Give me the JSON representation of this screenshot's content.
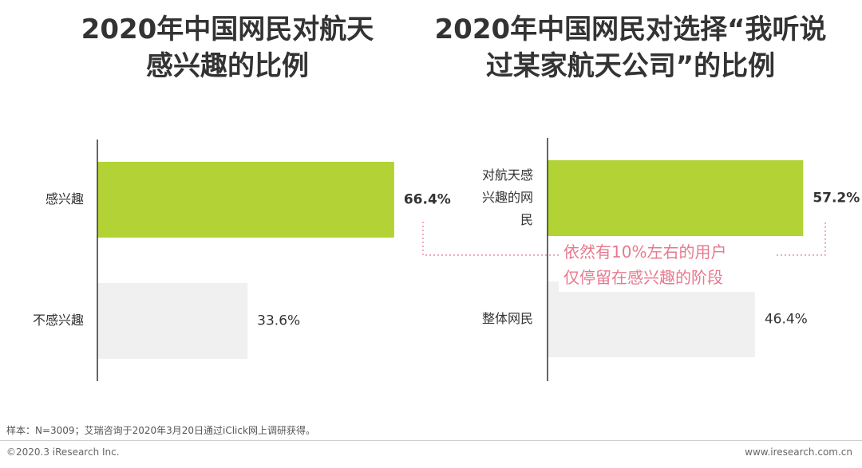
{
  "titles": {
    "left": [
      "2020年中国网民对航天",
      "感兴趣的比例"
    ],
    "right": [
      "2020年中国网民对选择“我听说",
      "过某家航天公司”的比例"
    ]
  },
  "colors": {
    "highlight": "#b2d235",
    "neutral": "#f0f0f0",
    "callout": "#e8798f",
    "axis": "#333333"
  },
  "chart_data": [
    {
      "type": "bar",
      "orientation": "horizontal",
      "title": "2020年中国网民对航天感兴趣的比例",
      "categories": [
        "感兴趣",
        "不感兴趣"
      ],
      "values": [
        66.4,
        33.6
      ],
      "value_labels": [
        "66.4%",
        "33.6%"
      ],
      "xlim": [
        0,
        100
      ],
      "grid": false
    },
    {
      "type": "bar",
      "orientation": "horizontal",
      "title": "2020年中国网民对选择“我听说过某家航天公司”的比例",
      "categories": [
        "对航天感兴趣的网民",
        "整体网民"
      ],
      "category_lines": [
        [
          "对航天感",
          "兴趣的网",
          "民"
        ],
        [
          "整体网民"
        ]
      ],
      "values": [
        57.2,
        46.4
      ],
      "value_labels": [
        "57.2%",
        "46.4%"
      ],
      "xlim": [
        0,
        100
      ],
      "grid": false,
      "annotation": [
        "依然有10%左右的用户",
        "仅停留在感兴趣的阶段"
      ]
    }
  ],
  "footer": {
    "source": "样本：N=3009；艾瑞咨询于2020年3月20日通过iClick网上调研获得。",
    "copyright": "©2020.3 iResearch Inc.",
    "website": "www.iresearch.com.cn"
  }
}
